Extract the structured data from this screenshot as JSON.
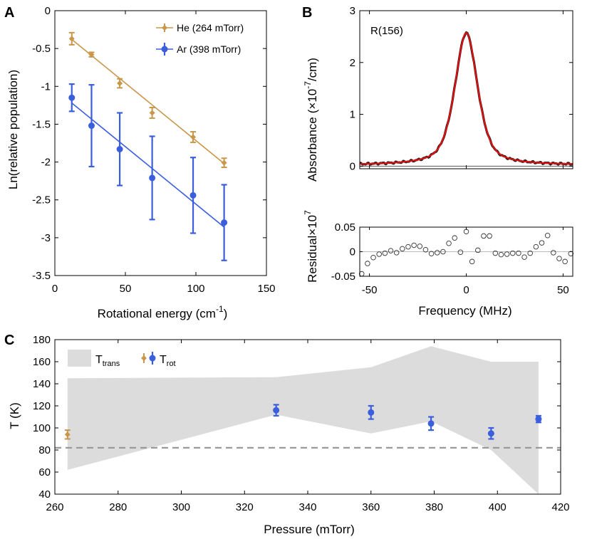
{
  "colors": {
    "he": "#C8974A",
    "ar": "#3B5FDC",
    "fit": "#E01010",
    "data": "#222222",
    "band": "#DCDCDC",
    "ref": "#9A9A9A",
    "zero": "#BBBBBB",
    "axis": "#000000"
  },
  "panels": {
    "a": "A",
    "b": "B",
    "c": "C"
  },
  "chart_data": [
    {
      "id": "A",
      "type": "scatter",
      "xlabel": "Rotational energy  (cm",
      "xlabel_sup": "-1",
      "xlabel_end": ")",
      "ylabel": "Ln(relative population)",
      "xlim": [
        0,
        150
      ],
      "ylim": [
        -3.5,
        0
      ],
      "xticks": [
        0,
        50,
        100,
        150
      ],
      "yticks": [
        0,
        -0.5,
        -1,
        -1.5,
        -2,
        -2.5,
        -3,
        -3.5
      ],
      "xtick_labels": [
        "0",
        "50",
        "100",
        "150"
      ],
      "ytick_labels": [
        "0",
        "-0.5",
        "-1",
        "-1.5",
        "-2",
        "-2.5",
        "-3",
        "-3.5"
      ],
      "legend": [
        "He (264 mTorr)",
        "Ar  (398 mTorr)"
      ],
      "series": [
        {
          "name": "He (264 mTorr)",
          "marker": "diamond",
          "x": [
            12,
            26,
            46,
            69,
            98,
            120
          ],
          "y": [
            -0.37,
            -0.58,
            -0.96,
            -1.35,
            -1.67,
            -2.01
          ],
          "err": [
            0.08,
            0.03,
            0.06,
            0.07,
            0.07,
            0.06
          ],
          "fit": [
            [
              12,
              -0.38
            ],
            [
              120,
              -2.02
            ]
          ]
        },
        {
          "name": "Ar  (398 mTorr)",
          "marker": "circle",
          "x": [
            12,
            26,
            46,
            69,
            98,
            120
          ],
          "y": [
            -1.15,
            -1.52,
            -1.83,
            -2.21,
            -2.44,
            -2.8
          ],
          "err": [
            0.18,
            0.54,
            0.48,
            0.55,
            0.5,
            0.5
          ],
          "fit": [
            [
              12,
              -1.22
            ],
            [
              120,
              -2.86
            ]
          ]
        }
      ]
    },
    {
      "id": "B-top",
      "type": "line",
      "annotation": "R(156)",
      "ylabel": "Absorbance",
      "ylabel_unit_a": "(×10",
      "ylabel_unit_sup": "-7",
      "ylabel_unit_b": "/cm)",
      "xlim": [
        -55,
        55
      ],
      "ylim": [
        -0.05,
        3
      ],
      "yticks": [
        0,
        1,
        2,
        3
      ],
      "ytick_labels": [
        "0",
        "1",
        "2",
        "3"
      ],
      "profile": {
        "center": 0,
        "peak": 2.55,
        "fwhm": 14,
        "baseline": 0.02
      },
      "series": [
        {
          "name": "data",
          "kind": "measured"
        },
        {
          "name": "fit",
          "kind": "fit"
        }
      ]
    },
    {
      "id": "B-bottom",
      "type": "scatter",
      "xlabel": "Frequency (MHz)",
      "ylabel": "Residual×10",
      "ylabel_sup": "7",
      "xlim": [
        -55,
        55
      ],
      "ylim": [
        -0.05,
        0.05
      ],
      "xticks": [
        -50,
        0,
        50
      ],
      "yticks": [
        0.05,
        0,
        -0.05
      ],
      "xtick_labels": [
        "-50",
        "0",
        "50"
      ],
      "ytick_labels": [
        "0.05",
        "0",
        "-0.05"
      ],
      "x": [
        -54,
        -51,
        -48,
        -45,
        -42,
        -39,
        -36,
        -33,
        -30,
        -27,
        -24,
        -21,
        -18,
        -15,
        -12,
        -9,
        -6,
        -3,
        0,
        3,
        6,
        9,
        12,
        15,
        18,
        21,
        24,
        27,
        30,
        33,
        36,
        39,
        42,
        45,
        48,
        51,
        54
      ],
      "y": [
        -0.045,
        -0.024,
        -0.012,
        -0.005,
        -0.003,
        0.002,
        -0.002,
        0.006,
        0.01,
        0.013,
        0.011,
        0.004,
        -0.004,
        -0.002,
        0.0,
        0.017,
        0.028,
        -0.001,
        0.041,
        -0.02,
        0.003,
        0.032,
        0.032,
        -0.003,
        -0.006,
        -0.005,
        -0.003,
        -0.003,
        -0.011,
        -0.003,
        0.01,
        0.018,
        0.033,
        -0.002,
        -0.014,
        -0.02,
        -0.004
      ]
    },
    {
      "id": "C",
      "type": "scatter",
      "xlabel": "Pressure (mTorr)",
      "ylabel": "T (K)",
      "xlim": [
        260,
        420
      ],
      "ylim": [
        40,
        180
      ],
      "xticks": [
        260,
        280,
        300,
        320,
        340,
        360,
        380,
        400,
        420
      ],
      "yticks": [
        40,
        60,
        80,
        100,
        120,
        140,
        160,
        180
      ],
      "xtick_labels": [
        "260",
        "280",
        "300",
        "320",
        "340",
        "360",
        "380",
        "400",
        "420"
      ],
      "ytick_labels": [
        "40",
        "60",
        "80",
        "100",
        "120",
        "140",
        "160",
        "180"
      ],
      "legend_trans": "T",
      "legend_trans_sub": "trans",
      "legend_rot": "T",
      "legend_rot_sub": "rot",
      "reference_line": 82,
      "band_x": [
        264,
        330,
        360,
        379,
        398,
        413
      ],
      "band_upper": [
        145,
        146,
        155,
        174,
        160,
        160
      ],
      "band_lower": [
        62,
        112,
        95,
        106,
        80,
        40
      ],
      "series": [
        {
          "name": "He",
          "marker": "diamond",
          "x": [
            264
          ],
          "y": [
            94
          ],
          "err": [
            4
          ]
        },
        {
          "name": "Ar",
          "marker": "circle",
          "x": [
            330,
            360,
            379,
            398,
            413
          ],
          "y": [
            116,
            114,
            104,
            95,
            108
          ],
          "err": [
            5,
            6,
            6,
            5,
            3
          ]
        }
      ]
    }
  ]
}
